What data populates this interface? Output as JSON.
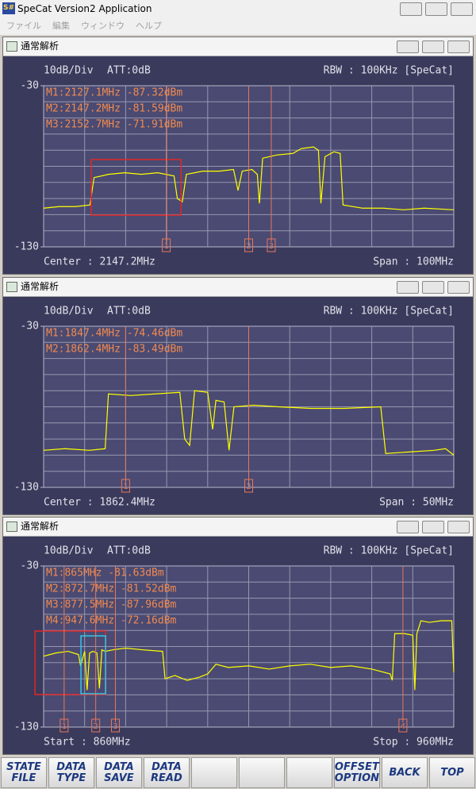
{
  "window": {
    "title": "SpeCat Version2 Application",
    "icon": "S#",
    "menu": [
      "ファイル",
      "編集",
      "ウィンドウ",
      "ヘルプ"
    ]
  },
  "chart_data": [
    {
      "type": "line",
      "title": "通常解析",
      "scale_label": "10dB/Div",
      "att_label": "ATT:0dB",
      "rbw_label": "RBW : 100KHz [SpeCat]",
      "footer_left": "Center : 2147.2MHz",
      "footer_right": "Span : 100MHz",
      "color": "#ffff00",
      "grid": true,
      "xlim": [
        2097.2,
        2197.2
      ],
      "ylim": [
        -130,
        -30
      ],
      "yticks": [
        -130,
        -30
      ],
      "xgrid": [
        2107.2,
        2117.2,
        2127.2,
        2137.2,
        2147.2,
        2157.2,
        2167.2,
        2177.2,
        2187.2
      ],
      "ygrid": [
        -120,
        -110,
        -100,
        -90,
        -80,
        -70,
        -60,
        -50,
        -40
      ],
      "x": [
        2097.2,
        2101,
        2105,
        2108.5,
        2109.5,
        2113,
        2117,
        2121,
        2125,
        2129,
        2129.8,
        2131,
        2132,
        2136,
        2140,
        2143.5,
        2144.6,
        2145.6,
        2148,
        2149.3,
        2149.8,
        2150.6,
        2154,
        2158,
        2160,
        2163,
        2164.2,
        2164.8,
        2165.8,
        2168,
        2169.5,
        2170.2,
        2175,
        2180,
        2185,
        2190,
        2197.2
      ],
      "values": [
        -106,
        -105,
        -105,
        -104,
        -87,
        -85,
        -84,
        -85,
        -84,
        -86,
        -100,
        -102,
        -85,
        -83,
        -83,
        -82,
        -95,
        -83,
        -82,
        -85,
        -103,
        -75,
        -73,
        -72,
        -69,
        -68,
        -70,
        -103,
        -74,
        -71,
        -72,
        -104,
        -106,
        -106,
        -107,
        -106,
        -107
      ],
      "markers": [
        {
          "x": 2127.1,
          "number": 1,
          "label": "M1:2127.1MHz -87.32dBm"
        },
        {
          "x": 2147.2,
          "number": 2,
          "label": "M2:2147.2MHz -81.59dBm"
        },
        {
          "x": 2152.7,
          "number": 3,
          "label": "M3:2152.7MHz -71.91dBm"
        }
      ],
      "regions": [
        {
          "color": "#e02828",
          "xlim": [
            2108.8,
            2130.7
          ],
          "ylim": [
            -110.3,
            -75.8
          ]
        }
      ]
    },
    {
      "type": "line",
      "title": "通常解析",
      "scale_label": "10dB/Div",
      "att_label": "ATT:0dB",
      "rbw_label": "RBW : 100KHz [SpeCat]",
      "footer_left": "Center : 1862.4MHz",
      "footer_right": "Span : 50MHz",
      "color": "#ffff00",
      "grid": true,
      "xlim": [
        1837.4,
        1887.4
      ],
      "ylim": [
        -130,
        -30
      ],
      "yticks": [
        -130,
        -30
      ],
      "xgrid": [
        1842.4,
        1847.4,
        1852.4,
        1857.4,
        1862.4,
        1867.4,
        1872.4,
        1877.4,
        1882.4
      ],
      "ygrid": [
        -120,
        -110,
        -100,
        -90,
        -80,
        -70,
        -60,
        -50,
        -40
      ],
      "x": [
        1837.4,
        1840,
        1843,
        1844.9,
        1845.3,
        1848,
        1851,
        1854,
        1854.6,
        1855.2,
        1855.8,
        1857.4,
        1858,
        1858.4,
        1859.4,
        1860,
        1860.6,
        1863,
        1866,
        1870,
        1874,
        1878.5,
        1879.1,
        1882,
        1885,
        1886.4,
        1887.4
      ],
      "values": [
        -107,
        -106,
        -107,
        -106,
        -72,
        -73,
        -72,
        -71,
        -100,
        -104,
        -70,
        -71,
        -94,
        -76,
        -77,
        -107,
        -80,
        -79,
        -80,
        -81,
        -81,
        -80,
        -109,
        -108,
        -107,
        -106,
        -110
      ],
      "markers": [
        {
          "x": 1847.4,
          "number": 1,
          "label": "M1:1847.4MHz -74.46dBm"
        },
        {
          "x": 1862.4,
          "number": 2,
          "label": "M2:1862.4MHz -83.49dBm"
        }
      ],
      "regions": []
    },
    {
      "type": "line",
      "title": "通常解析",
      "scale_label": "10dB/Div",
      "att_label": "ATT:0dB",
      "rbw_label": "RBW : 100KHz [SpeCat]",
      "footer_left": "Start : 860MHz",
      "footer_right": "Stop : 960MHz",
      "color": "#ffff00",
      "grid": true,
      "xlim": [
        860,
        960
      ],
      "ylim": [
        -130,
        -30
      ],
      "yticks": [
        -130,
        -30
      ],
      "xgrid": [
        870,
        880,
        890,
        900,
        910,
        920,
        930,
        940,
        950
      ],
      "ygrid": [
        -120,
        -110,
        -100,
        -90,
        -80,
        -70,
        -60,
        -50,
        -40
      ],
      "x": [
        860,
        863,
        866,
        868.5,
        869,
        870,
        870.6,
        871.2,
        872,
        873,
        873.6,
        874.2,
        875,
        877,
        880,
        884,
        889,
        889.6,
        892,
        895,
        898,
        900,
        902,
        905,
        910,
        915,
        920,
        925,
        930,
        935,
        940,
        944.5,
        945,
        945.6,
        948,
        950,
        950.5,
        951,
        952,
        954,
        957,
        959.5,
        960
      ],
      "values": [
        -86,
        -84,
        -83,
        -85,
        -92,
        -83,
        -107,
        -84,
        -83,
        -84,
        -106,
        -82,
        -83,
        -82,
        -81,
        -82,
        -83,
        -100,
        -98,
        -101,
        -99,
        -97,
        -91,
        -93,
        -92,
        -94,
        -92,
        -91,
        -93,
        -92,
        -94,
        -97,
        -101,
        -72,
        -72,
        -73,
        -107,
        -72,
        -64,
        -65,
        -64,
        -64,
        -96
      ],
      "markers": [
        {
          "x": 865,
          "number": 1,
          "label": "M1:865MHz -81.63dBm"
        },
        {
          "x": 872.7,
          "number": 2,
          "label": "M2:872.7MHz -81.52dBm"
        },
        {
          "x": 877.5,
          "number": 3,
          "label": "M3:877.5MHz -87.96dBm"
        },
        {
          "x": 947.6,
          "number": 4,
          "label": "M4:947.6MHz -72.16dBm"
        }
      ],
      "regions": [
        {
          "color": "#e02828",
          "xlim": [
            857.9,
            875.1
          ],
          "ylim": [
            -109.8,
            -70.4
          ]
        },
        {
          "color": "#30c8e8",
          "xlim": [
            869.1,
            875.1
          ],
          "ylim": [
            -109.3,
            -73.4
          ]
        }
      ]
    }
  ],
  "buttons_left": [
    [
      "STATE",
      "FILE"
    ],
    [
      "DATA",
      "TYPE"
    ],
    [
      "DATA",
      "SAVE"
    ],
    [
      "DATA",
      "READ"
    ]
  ],
  "buttons_right": [
    [
      "OFFSET",
      "OPTION"
    ],
    [
      "BACK"
    ],
    [
      "TOP"
    ]
  ]
}
